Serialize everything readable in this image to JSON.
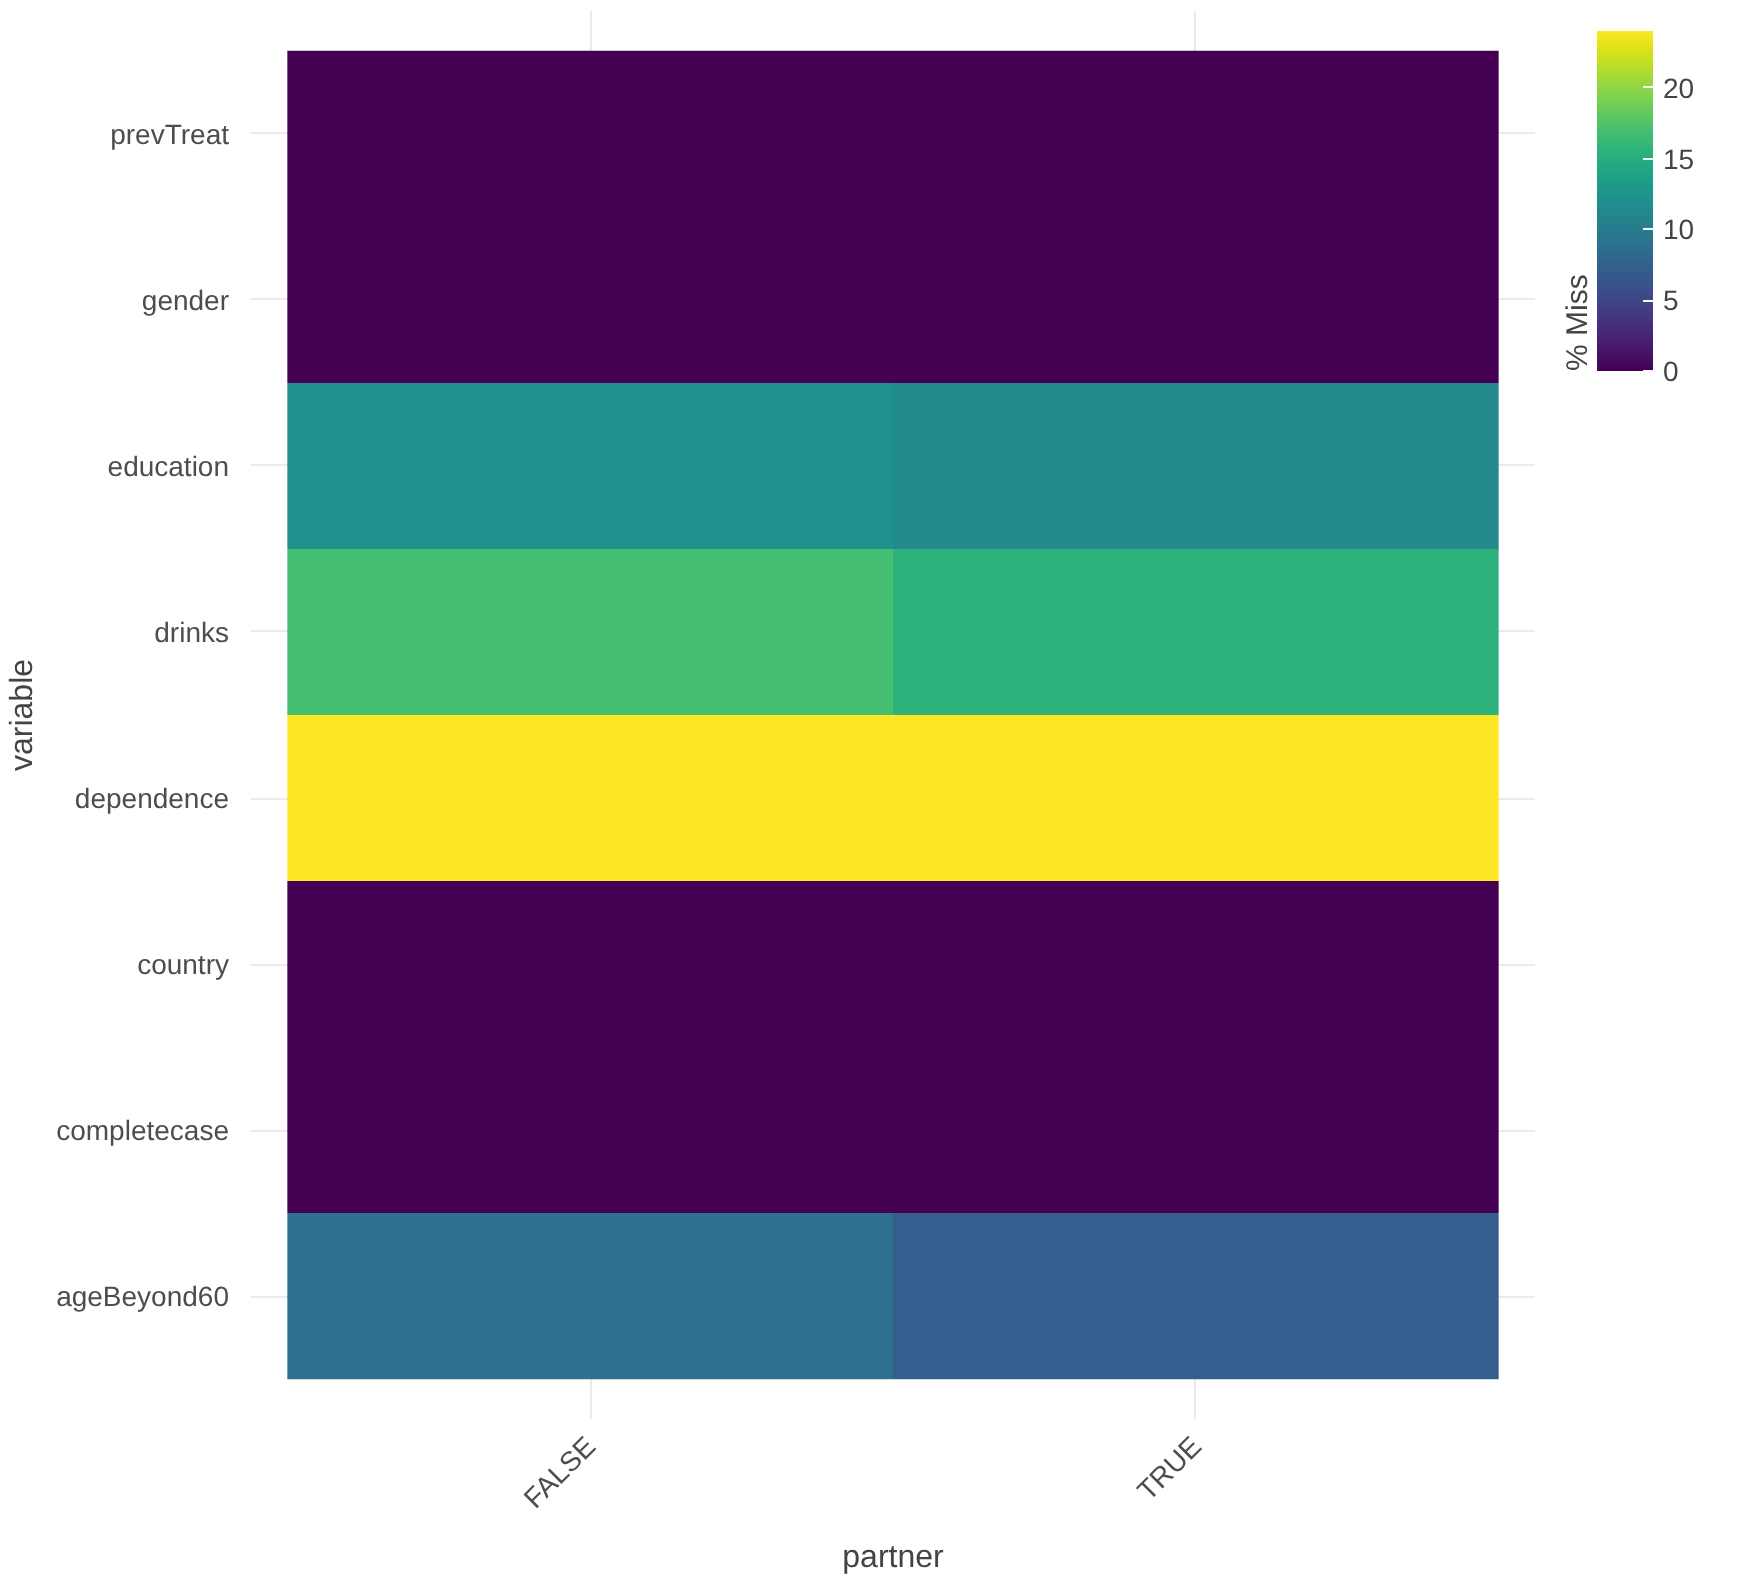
{
  "chart_data": {
    "type": "heatmap",
    "xlabel": "partner",
    "ylabel": "variable",
    "clabel": "% Miss",
    "categories": [
      "FALSE",
      "TRUE"
    ],
    "y_categories": [
      "prevTreat",
      "gender",
      "education",
      "drinks",
      "dependence",
      "country",
      "completecase",
      "ageBeyond60"
    ],
    "cells": [
      [
        0,
        0
      ],
      [
        0,
        0
      ],
      [
        12,
        11.5
      ],
      [
        16.8,
        15.5
      ],
      [
        24,
        24
      ],
      [
        0,
        0
      ],
      [
        0,
        0
      ],
      [
        9,
        7.2
      ]
    ],
    "clim": [
      0,
      24
    ],
    "cticks": [
      0,
      5,
      10,
      15,
      20
    ],
    "grid": true
  }
}
